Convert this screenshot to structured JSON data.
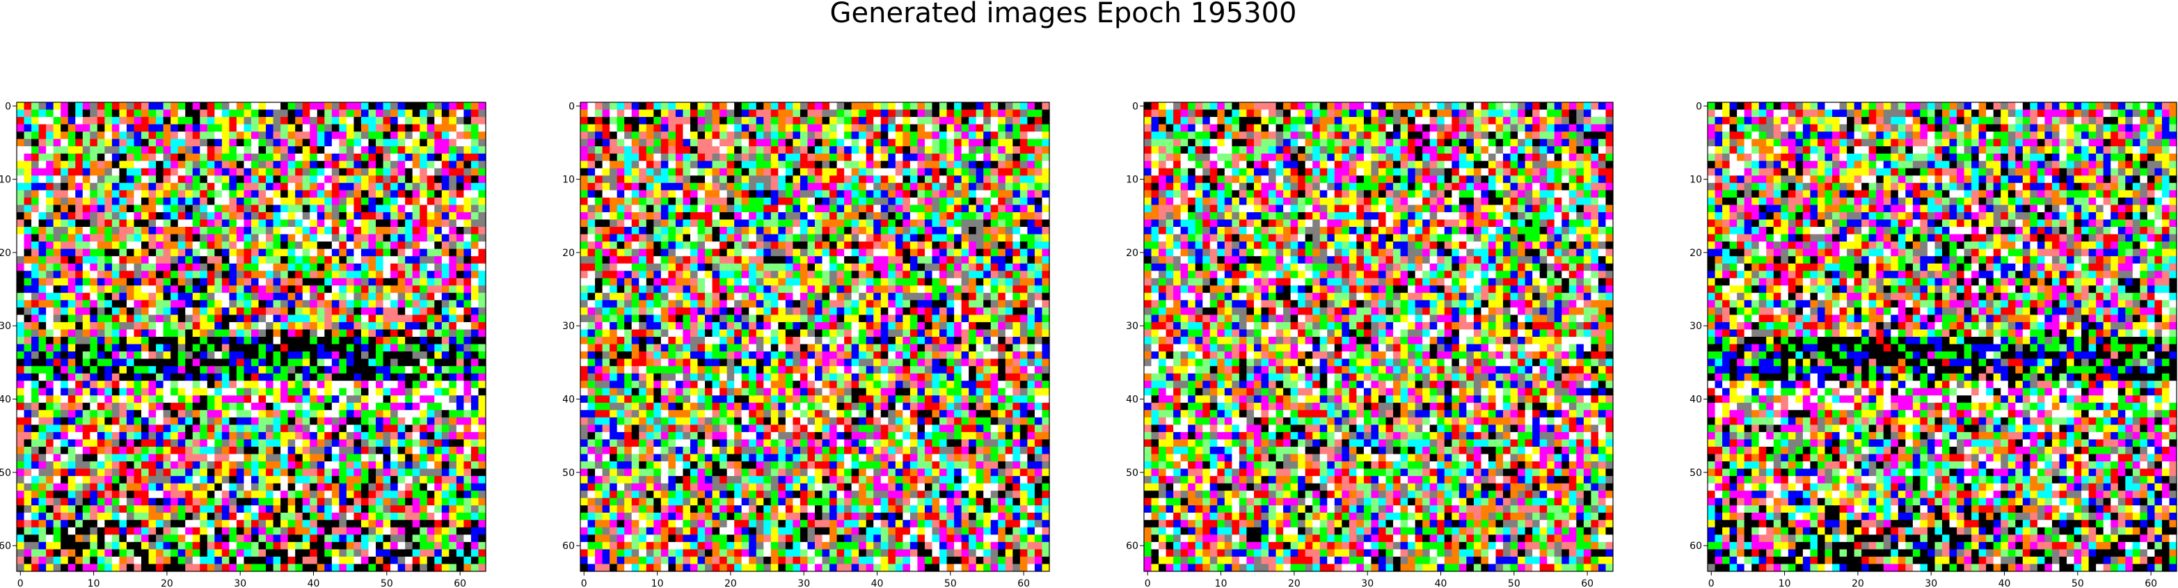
{
  "figure": {
    "suptitle": "Generated images Epoch 195300"
  },
  "chart_data": [
    {
      "type": "heatmap",
      "title": "",
      "xlabel": "",
      "ylabel": "",
      "xlim": [
        -0.5,
        63.5
      ],
      "ylim": [
        63.5,
        -0.5
      ],
      "grid": false,
      "x_ticks": [
        0,
        10,
        20,
        30,
        40,
        50,
        60
      ],
      "y_ticks": [
        0,
        10,
        20,
        30,
        40,
        50,
        60
      ],
      "image_shape": [
        64,
        64,
        3
      ],
      "palette": [
        "#ff0000",
        "#00ff00",
        "#0000ff",
        "#ffff00",
        "#ff00ff",
        "#00ffff",
        "#ffffff",
        "#000000",
        "#808080",
        "#ff8080",
        "#80ff80",
        "#ff8000"
      ],
      "pattern": {
        "seed": 11,
        "dark_band_rows": [
          32,
          37
        ],
        "bright_band_rows": [
          38,
          42
        ],
        "bottom_dark_rows": [
          57,
          63
        ]
      }
    },
    {
      "type": "heatmap",
      "title": "",
      "xlabel": "",
      "ylabel": "",
      "xlim": [
        -0.5,
        63.5
      ],
      "ylim": [
        63.5,
        -0.5
      ],
      "grid": false,
      "x_ticks": [
        0,
        10,
        20,
        30,
        40,
        50,
        60
      ],
      "y_ticks": [
        0,
        10,
        20,
        30,
        40,
        50,
        60
      ],
      "image_shape": [
        64,
        64,
        3
      ],
      "palette": [
        "#ff0000",
        "#00ff00",
        "#0000ff",
        "#ffff00",
        "#ff00ff",
        "#00ffff",
        "#ffffff",
        "#000000",
        "#808080",
        "#ff8080",
        "#80ff80",
        "#ff8000"
      ],
      "pattern": {
        "seed": 23,
        "dark_band_rows": [],
        "bright_band_rows": [],
        "bottom_dark_rows": []
      }
    },
    {
      "type": "heatmap",
      "title": "",
      "xlabel": "",
      "ylabel": "",
      "xlim": [
        -0.5,
        63.5
      ],
      "ylim": [
        63.5,
        -0.5
      ],
      "grid": false,
      "x_ticks": [
        0,
        10,
        20,
        30,
        40,
        50,
        60
      ],
      "y_ticks": [
        0,
        10,
        20,
        30,
        40,
        50,
        60
      ],
      "image_shape": [
        64,
        64,
        3
      ],
      "palette": [
        "#ff0000",
        "#00ff00",
        "#0000ff",
        "#ffff00",
        "#ff00ff",
        "#00ffff",
        "#ffffff",
        "#000000",
        "#808080",
        "#ff8080",
        "#80ff80",
        "#ff8000"
      ],
      "pattern": {
        "seed": 37,
        "dark_band_rows": [],
        "bright_band_rows": [],
        "bottom_dark_rows": []
      }
    },
    {
      "type": "heatmap",
      "title": "",
      "xlabel": "",
      "ylabel": "",
      "xlim": [
        -0.5,
        63.5
      ],
      "ylim": [
        63.5,
        -0.5
      ],
      "grid": false,
      "x_ticks": [
        0,
        10,
        20,
        30,
        40,
        50,
        60
      ],
      "y_ticks": [
        0,
        10,
        20,
        30,
        40,
        50,
        60
      ],
      "image_shape": [
        64,
        64,
        3
      ],
      "palette": [
        "#ff0000",
        "#00ff00",
        "#0000ff",
        "#ffff00",
        "#ff00ff",
        "#00ffff",
        "#ffffff",
        "#000000",
        "#808080",
        "#ff8080",
        "#80ff80",
        "#ff8000"
      ],
      "pattern": {
        "seed": 53,
        "dark_band_rows": [
          32,
          37
        ],
        "bright_band_rows": [
          38,
          42
        ],
        "bottom_dark_rows": [
          57,
          63
        ]
      }
    }
  ]
}
